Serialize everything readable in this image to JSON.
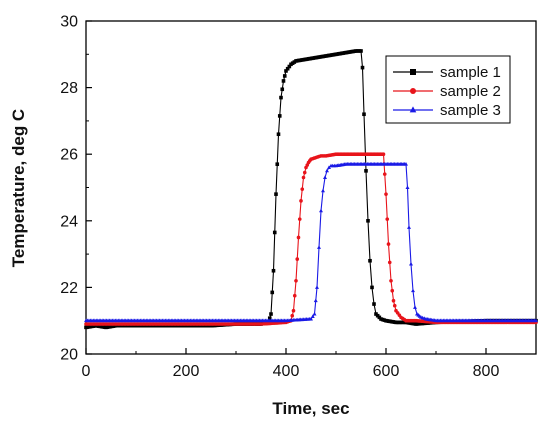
{
  "chart_data": {
    "type": "line",
    "title": "",
    "xlabel": "Time, sec",
    "ylabel": "Temperature, deg C",
    "xlim": [
      0,
      900
    ],
    "ylim": [
      20,
      30
    ],
    "xticks": [
      0,
      200,
      400,
      600,
      800
    ],
    "yticks": [
      20,
      22,
      24,
      26,
      28,
      30
    ],
    "xtick_labels": [
      "0",
      "200",
      "400",
      "600",
      "800"
    ],
    "ytick_labels": [
      "20",
      "22",
      "24",
      "26",
      "28",
      "30"
    ],
    "grid": false,
    "legend": {
      "placement": "top-right"
    },
    "series": [
      {
        "name": "sample 1",
        "color": "#000000",
        "marker": "square",
        "x": [
          0,
          20,
          40,
          60,
          100,
          150,
          200,
          250,
          300,
          350,
          365,
          370,
          375,
          380,
          385,
          390,
          395,
          400,
          410,
          420,
          440,
          460,
          480,
          500,
          520,
          540,
          550,
          553,
          556,
          560,
          564,
          568,
          572,
          576,
          580,
          590,
          600,
          620,
          640,
          660,
          700,
          800,
          900
        ],
        "y": [
          20.8,
          20.85,
          20.8,
          20.85,
          20.85,
          20.85,
          20.85,
          20.85,
          20.9,
          20.9,
          20.95,
          21.2,
          22.5,
          24.8,
          26.6,
          27.7,
          28.2,
          28.5,
          28.7,
          28.8,
          28.85,
          28.9,
          28.95,
          29.0,
          29.05,
          29.1,
          29.1,
          28.6,
          27.2,
          25.5,
          24.0,
          22.8,
          22.0,
          21.5,
          21.2,
          21.05,
          21.0,
          20.95,
          20.95,
          20.9,
          20.95,
          21.0,
          21.0
        ]
      },
      {
        "name": "sample 2",
        "color": "#e8141b",
        "marker": "circle",
        "x": [
          0,
          50,
          100,
          150,
          200,
          250,
          300,
          350,
          400,
          410,
          415,
          420,
          425,
          430,
          435,
          440,
          445,
          450,
          460,
          470,
          480,
          500,
          520,
          540,
          560,
          580,
          595,
          600,
          605,
          610,
          615,
          620,
          630,
          640,
          660,
          700,
          800,
          900
        ],
        "y": [
          20.9,
          20.9,
          20.9,
          20.9,
          20.9,
          20.9,
          20.9,
          20.9,
          20.95,
          21.0,
          21.3,
          22.2,
          23.5,
          24.6,
          25.3,
          25.6,
          25.75,
          25.85,
          25.9,
          25.95,
          25.95,
          26.0,
          26.0,
          26.0,
          26.0,
          26.0,
          26.0,
          24.8,
          23.3,
          22.2,
          21.6,
          21.3,
          21.1,
          21.0,
          21.0,
          20.95,
          20.95,
          20.95
        ]
      },
      {
        "name": "sample 3",
        "color": "#1a1ae6",
        "marker": "triangle",
        "x": [
          0,
          50,
          100,
          150,
          200,
          250,
          300,
          350,
          400,
          450,
          457,
          462,
          466,
          470,
          474,
          478,
          482,
          486,
          490,
          500,
          520,
          540,
          560,
          580,
          600,
          620,
          640,
          643,
          646,
          650,
          654,
          658,
          662,
          670,
          680,
          700,
          750,
          800,
          900
        ],
        "y": [
          21.0,
          21.0,
          21.0,
          21.0,
          21.0,
          21.0,
          21.0,
          21.0,
          21.0,
          21.05,
          21.2,
          22.0,
          23.2,
          24.3,
          24.9,
          25.3,
          25.5,
          25.6,
          25.65,
          25.65,
          25.7,
          25.7,
          25.7,
          25.7,
          25.7,
          25.7,
          25.7,
          25.0,
          23.8,
          22.7,
          21.9,
          21.4,
          21.2,
          21.1,
          21.05,
          21.0,
          21.0,
          21.0,
          21.0
        ]
      }
    ]
  }
}
